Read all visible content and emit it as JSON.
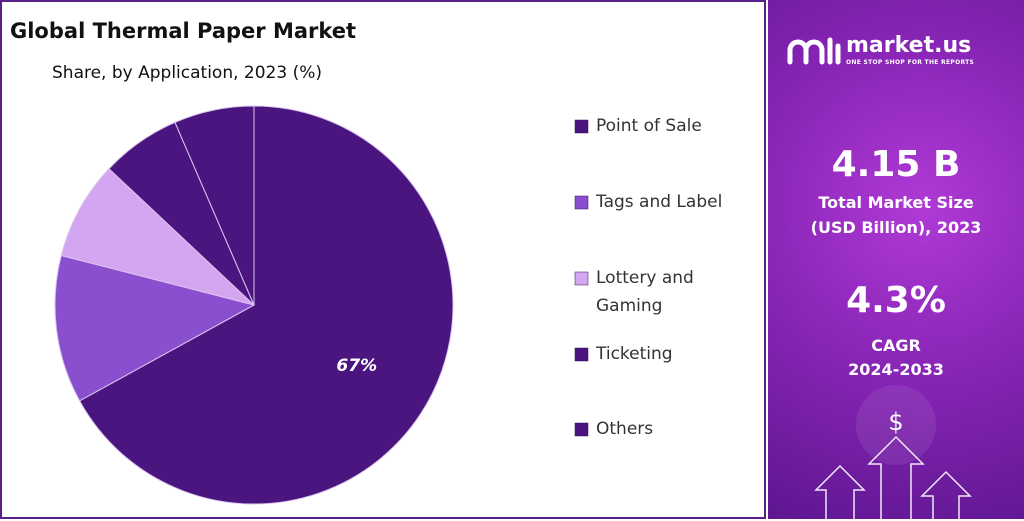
{
  "chart_data": {
    "type": "pie",
    "title": "Global Thermal Paper Market",
    "subtitle": "Share, by Application, 2023 (%)",
    "categories": [
      "Point of Sale",
      "Tags and Label",
      "Lottery and Gaming",
      "Ticketing",
      "Others"
    ],
    "values": [
      67,
      12,
      8,
      6.5,
      6.5
    ],
    "value_labels": [
      "67%",
      null,
      null,
      null,
      null
    ],
    "colors": [
      "#4b1580",
      "#8a4fcf",
      "#d4a5f0",
      "#4b1580",
      "#4b1580"
    ],
    "legend": "right"
  },
  "panel": {
    "brand": "market.us",
    "tagline": "ONE STOP SHOP FOR THE REPORTS",
    "market_size": "4.15 B",
    "market_size_label": "Total Market Size",
    "market_size_unit": "(USD Billion), 2023",
    "cagr": "4.3%",
    "cagr_label": "CAGR",
    "cagr_period": "2024-2033",
    "icon_symbol": "$"
  }
}
